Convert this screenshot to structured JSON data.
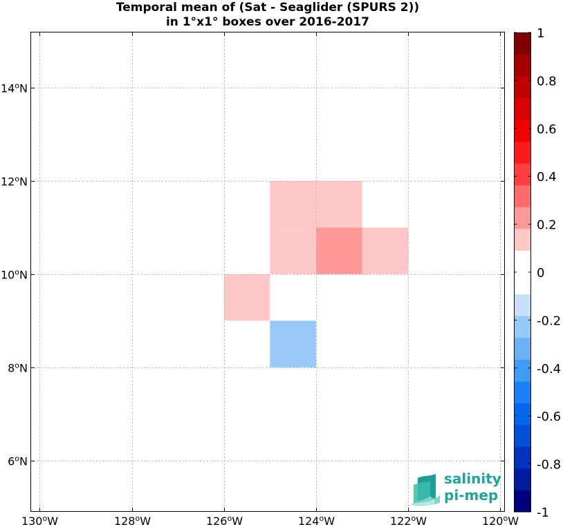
{
  "title": {
    "line1": "Temporal mean of (Sat - Seaglider (SPURS 2))",
    "line2": "in 1°x1° boxes over 2016-2017"
  },
  "map": {
    "lon_range": [
      -130.2,
      -119.9
    ],
    "lat_range": [
      4.9,
      15.2
    ],
    "grid": true,
    "x_ticks": [
      {
        "value": -130,
        "label": "130",
        "suffix": "W"
      },
      {
        "value": -128,
        "label": "128",
        "suffix": "W"
      },
      {
        "value": -126,
        "label": "126",
        "suffix": "W"
      },
      {
        "value": -124,
        "label": "124",
        "suffix": "W"
      },
      {
        "value": -122,
        "label": "122",
        "suffix": "W"
      },
      {
        "value": -120,
        "label": "120",
        "suffix": "W"
      }
    ],
    "y_ticks": [
      {
        "value": 6,
        "label": "6",
        "suffix": "N"
      },
      {
        "value": 8,
        "label": "8",
        "suffix": "N"
      },
      {
        "value": 10,
        "label": "10",
        "suffix": "N"
      },
      {
        "value": 12,
        "label": "12",
        "suffix": "N"
      },
      {
        "value": 14,
        "label": "14",
        "suffix": "N"
      }
    ],
    "degree_symbol": "o"
  },
  "chart_data": {
    "type": "heatmap",
    "title": "Temporal mean of (Sat - Seaglider (SPURS 2)) in 1°x1° boxes over 2016-2017",
    "cells": [
      {
        "lon_min": -125,
        "lon_max": -124,
        "lat_min": 11,
        "lat_max": 12,
        "value": 0.15
      },
      {
        "lon_min": -124,
        "lon_max": -123,
        "lat_min": 11,
        "lat_max": 12,
        "value": 0.15
      },
      {
        "lon_min": -125,
        "lon_max": -124,
        "lat_min": 10,
        "lat_max": 11,
        "value": 0.15
      },
      {
        "lon_min": -124,
        "lon_max": -123,
        "lat_min": 10,
        "lat_max": 11,
        "value": 0.25
      },
      {
        "lon_min": -123,
        "lon_max": -122,
        "lat_min": 10,
        "lat_max": 11,
        "value": 0.15
      },
      {
        "lon_min": -126,
        "lon_max": -125,
        "lat_min": 9,
        "lat_max": 10,
        "value": 0.15
      },
      {
        "lon_min": -125,
        "lon_max": -124,
        "lat_min": 8,
        "lat_max": 9,
        "value": -0.25
      }
    ]
  },
  "colorbar": {
    "range": [
      -1,
      1
    ],
    "colors": [
      "#00007f",
      "#001aa0",
      "#0033c0",
      "#004ed8",
      "#0066ec",
      "#1a82f8",
      "#3f9cf6",
      "#6cb2f2",
      "#98c8f6",
      "#c8e0fa",
      "#ffffff",
      "#ffffff",
      "#ffc8c8",
      "#ff9898",
      "#ff6c6c",
      "#ff3f3f",
      "#ff1a1a",
      "#f00000",
      "#d80000",
      "#bf0000",
      "#a50000",
      "#7f0000"
    ],
    "ticks": [
      {
        "value": 1,
        "label": "1"
      },
      {
        "value": 0.8,
        "label": "0.8"
      },
      {
        "value": 0.6,
        "label": "0.6"
      },
      {
        "value": 0.4,
        "label": "0.4"
      },
      {
        "value": 0.2,
        "label": "0.2"
      },
      {
        "value": 0,
        "label": "0"
      },
      {
        "value": -0.2,
        "label": "-0.2"
      },
      {
        "value": -0.4,
        "label": "-0.4"
      },
      {
        "value": -0.6,
        "label": "-0.6"
      },
      {
        "value": -0.8,
        "label": "-0.8"
      },
      {
        "value": -1,
        "label": "-1"
      }
    ]
  },
  "logo": {
    "line1": "salinity",
    "line2": "pi-mep",
    "color": "#1fa39a"
  }
}
